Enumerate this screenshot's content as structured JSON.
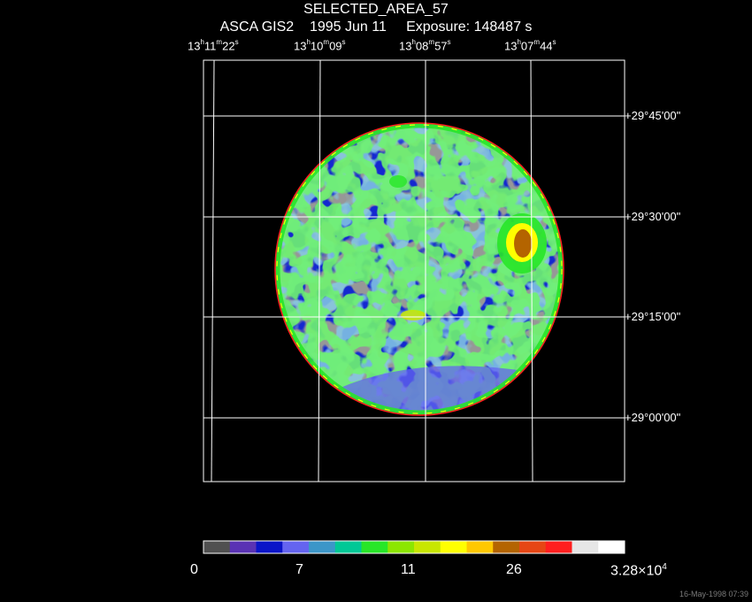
{
  "header": {
    "title": "SELECTED_AREA_57",
    "subtitle": "ASCA GIS2    1995 Jun 11     Exposure: 148487 s"
  },
  "ra_ticks": [
    {
      "h": "13",
      "m": "11",
      "s": "22"
    },
    {
      "h": "13",
      "m": "10",
      "s": "09"
    },
    {
      "h": "13",
      "m": "08",
      "s": "57"
    },
    {
      "h": "13",
      "m": "07",
      "s": "44"
    }
  ],
  "dec_ticks": [
    "+29°45'00\"",
    "+29°30'00\"",
    "+29°15'00\"",
    "+29°00'00\""
  ],
  "colorbar": {
    "colors": [
      "#505050",
      "#5a32b4",
      "#0a14c8",
      "#6464f0",
      "#3c96c8",
      "#00c896",
      "#28e628",
      "#8ce600",
      "#c8e600",
      "#ffff00",
      "#ffc800",
      "#b46400",
      "#e64614",
      "#ff1e1e",
      "#e6e6e6",
      "#ffffff"
    ],
    "labels": [
      {
        "text": "0"
      },
      {
        "text": "7"
      },
      {
        "text": "11"
      },
      {
        "text": "26"
      },
      {
        "text": "3.28×10",
        "exp": "4"
      }
    ]
  },
  "timestamp": "16-May-1998 07:39"
}
